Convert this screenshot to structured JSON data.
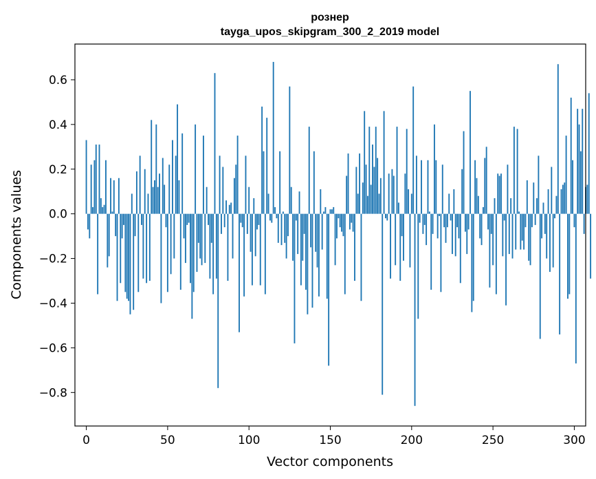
{
  "chart_data": {
    "type": "bar",
    "title": "рознер",
    "subtitle": "tayga_upos_skipgram_300_2_2019 model",
    "xlabel": "Vector components",
    "ylabel": "Components values",
    "xlim": [
      -7,
      307
    ],
    "ylim": [
      -0.95,
      0.76
    ],
    "xticks": [
      0,
      50,
      100,
      150,
      200,
      250,
      300
    ],
    "xtick_labels": [
      "0",
      "50",
      "100",
      "150",
      "200",
      "250",
      "300"
    ],
    "yticks": [
      -0.8,
      -0.6,
      -0.4,
      -0.2,
      0.0,
      0.2,
      0.4,
      0.6
    ],
    "ytick_labels": [
      "−0.8",
      "−0.6",
      "−0.4",
      "−0.2",
      "0.0",
      "0.2",
      "0.4",
      "0.6"
    ],
    "bar_color": "#1f77b4",
    "grid": false,
    "values": [
      0.33,
      -0.07,
      -0.11,
      0.22,
      0.03,
      0.24,
      0.31,
      -0.36,
      0.31,
      0.07,
      0.03,
      0.04,
      0.24,
      -0.24,
      -0.19,
      0.16,
      0.01,
      0.15,
      -0.1,
      -0.39,
      0.16,
      -0.31,
      -0.11,
      -0.05,
      -0.35,
      -0.38,
      -0.39,
      -0.45,
      0.09,
      -0.43,
      -0.1,
      0.19,
      -0.35,
      0.26,
      -0.05,
      -0.29,
      0.2,
      -0.31,
      0.09,
      -0.3,
      0.42,
      0.12,
      0.15,
      0.4,
      0.12,
      0.18,
      -0.4,
      0.25,
      0.13,
      -0.06,
      -0.35,
      0.22,
      -0.27,
      0.33,
      -0.2,
      0.26,
      0.49,
      0.15,
      -0.34,
      0.36,
      -0.11,
      -0.22,
      -0.05,
      -0.04,
      -0.31,
      -0.47,
      -0.35,
      0.4,
      -0.26,
      -0.13,
      -0.2,
      -0.23,
      0.35,
      -0.22,
      0.12,
      -0.05,
      -0.29,
      -0.13,
      -0.36,
      0.63,
      -0.29,
      -0.78,
      0.26,
      -0.09,
      0.21,
      -0.06,
      0.06,
      -0.3,
      0.04,
      0.05,
      -0.2,
      0.16,
      0.22,
      0.35,
      -0.53,
      -0.04,
      -0.06,
      -0.37,
      0.26,
      -0.09,
      0.12,
      -0.17,
      -0.32,
      0.07,
      -0.19,
      -0.07,
      -0.05,
      -0.32,
      0.48,
      0.28,
      -0.36,
      0.43,
      0.09,
      -0.03,
      -0.04,
      0.68,
      0.03,
      -0.02,
      -0.13,
      0.28,
      -0.14,
      0.01,
      -0.13,
      -0.2,
      -0.1,
      0.57,
      0.12,
      -0.21,
      -0.58,
      -0.03,
      -0.18,
      0.1,
      -0.32,
      -0.21,
      -0.09,
      -0.34,
      -0.45,
      0.39,
      -0.15,
      -0.42,
      0.28,
      -0.17,
      -0.24,
      -0.37,
      0.11,
      -0.16,
      0.01,
      0.03,
      -0.38,
      -0.68,
      0.02,
      0.02,
      0.03,
      -0.23,
      -0.11,
      -0.02,
      -0.06,
      -0.08,
      -0.1,
      -0.36,
      0.17,
      0.27,
      -0.07,
      -0.04,
      -0.08,
      -0.3,
      0.21,
      0.09,
      0.27,
      -0.39,
      0.14,
      0.46,
      0.22,
      0.08,
      0.39,
      0.13,
      0.31,
      0.21,
      0.39,
      0.25,
      0.09,
      0.16,
      -0.81,
      0.46,
      -0.02,
      -0.03,
      0.18,
      -0.29,
      0.2,
      0.17,
      -0.23,
      0.39,
      0.05,
      -0.3,
      -0.1,
      -0.21,
      0.18,
      0.38,
      0.11,
      -0.24,
      0.09,
      0.57,
      -0.86,
      0.26,
      -0.47,
      -0.04,
      0.24,
      -0.09,
      -0.05,
      -0.14,
      0.24,
      0.01,
      -0.34,
      -0.09,
      0.4,
      0.24,
      -0.11,
      -0.01,
      -0.35,
      0.22,
      -0.06,
      -0.13,
      -0.06,
      0.09,
      -0.03,
      -0.18,
      0.11,
      -0.19,
      -0.06,
      -0.11,
      -0.31,
      0.2,
      0.37,
      -0.08,
      -0.18,
      -0.07,
      0.55,
      -0.44,
      -0.39,
      0.24,
      0.16,
      0.08,
      -0.11,
      -0.14,
      0.03,
      0.25,
      0.3,
      -0.07,
      -0.33,
      -0.09,
      -0.23,
      0.07,
      -0.36,
      0.18,
      0.17,
      0.18,
      -0.19,
      -0.03,
      -0.41,
      0.22,
      -0.18,
      0.07,
      -0.2,
      0.39,
      -0.16,
      0.38,
      0.01,
      -0.16,
      -0.12,
      -0.16,
      -0.06,
      0.15,
      -0.21,
      -0.23,
      -0.06,
      0.14,
      -0.05,
      0.07,
      0.26,
      -0.56,
      -0.11,
      0.05,
      -0.09,
      -0.2,
      0.11,
      -0.26,
      0.21,
      -0.24,
      -0.02,
      0.08,
      0.67,
      -0.54,
      0.11,
      0.13,
      0.14,
      0.35,
      -0.38,
      -0.36,
      0.52,
      0.24,
      -0.06,
      -0.67,
      0.47,
      0.4,
      0.28,
      0.47,
      -0.09,
      0.12,
      0.13,
      0.54,
      -0.29
    ]
  }
}
